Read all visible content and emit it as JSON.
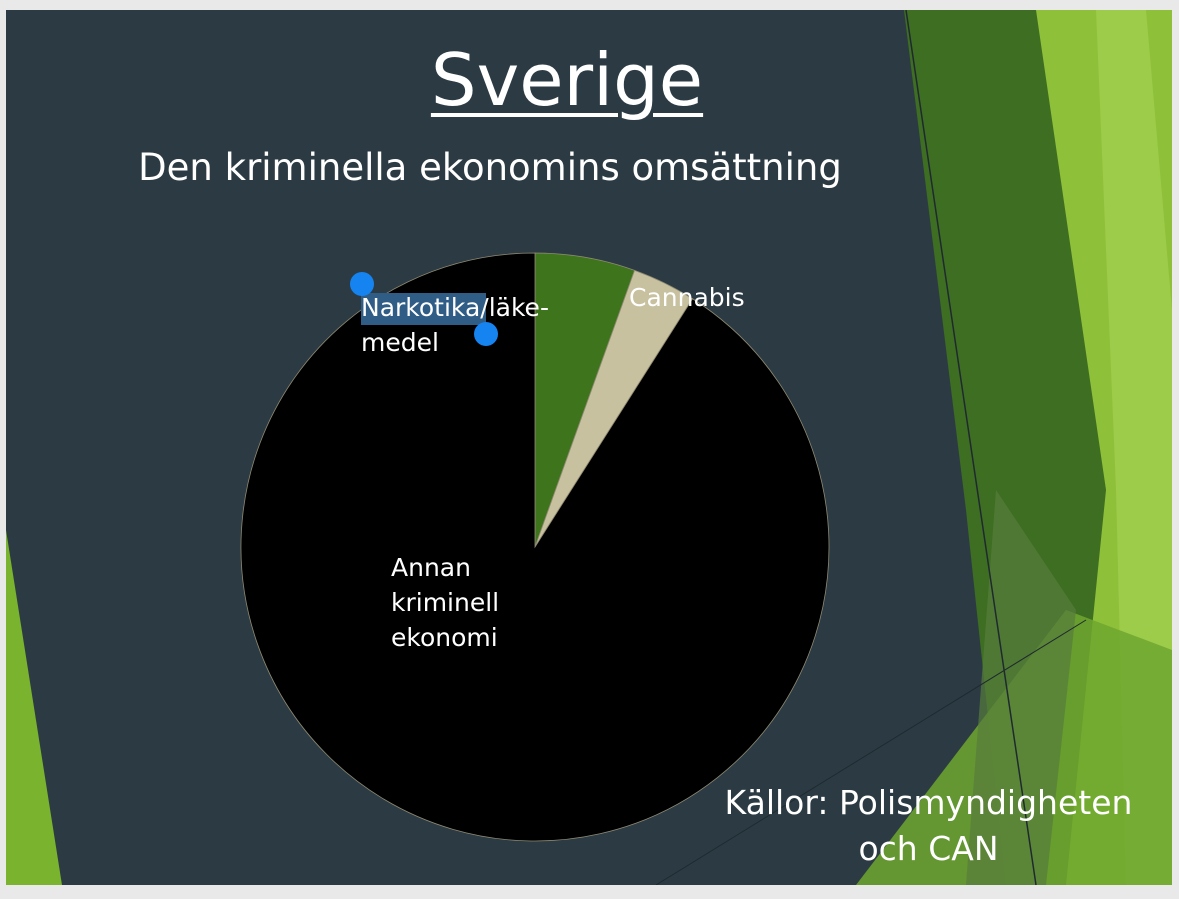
{
  "chart_data": {
    "type": "pie",
    "title": "Sverige",
    "subtitle": "Den kriminella ekonomins omsättning",
    "categories": [
      "Narkotika/läke-medel",
      "Cannabis",
      "Annan kriminell ekonomi"
    ],
    "values": [
      5.5,
      3.5,
      91
    ],
    "colors": [
      "#3d741c",
      "#c8c1a0",
      "#000000"
    ],
    "source": "Källor: Polismyndigheten och CAN"
  }
}
